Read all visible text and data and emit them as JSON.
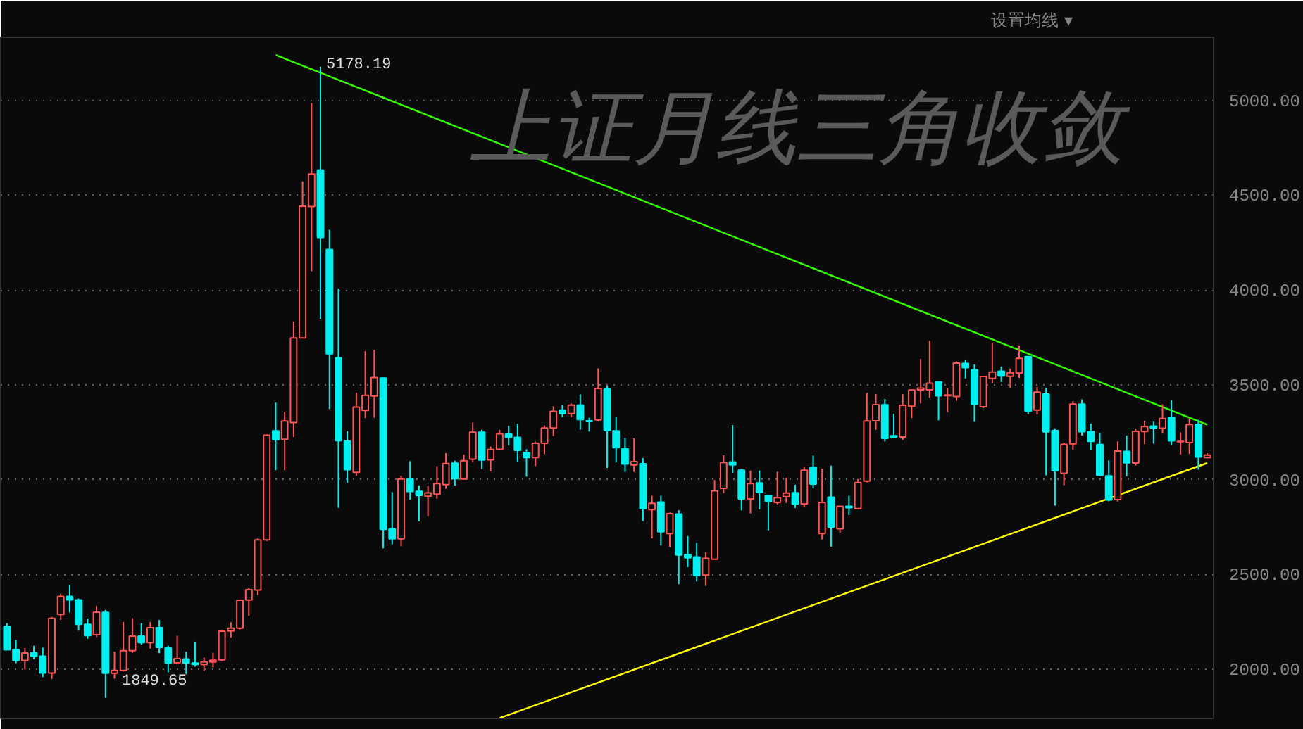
{
  "chart_data": {
    "type": "candlestick",
    "title": "上证月线三角收敛",
    "categories": [
      null,
      null,
      null,
      null,
      null,
      null,
      null,
      null,
      null,
      null,
      null,
      null,
      null,
      null,
      null,
      null,
      null,
      null,
      null,
      null,
      null,
      null,
      null,
      null,
      null,
      null,
      null,
      null,
      null,
      null,
      null,
      null,
      null,
      null,
      null,
      null,
      null,
      null,
      null,
      null,
      null,
      null,
      null,
      null,
      null,
      null,
      null,
      null,
      null,
      null,
      null,
      null,
      null,
      null,
      null,
      null,
      null,
      null,
      null,
      null,
      null,
      null,
      null,
      null,
      null,
      null,
      null,
      null,
      null,
      null,
      null,
      null,
      null,
      null,
      null,
      null,
      null,
      null,
      null,
      null,
      null,
      null,
      null,
      null,
      null,
      null,
      null,
      null,
      null,
      null,
      null,
      null,
      null,
      null,
      null,
      null,
      null,
      null,
      null,
      null,
      null,
      null,
      null,
      null,
      null,
      null,
      null,
      null,
      null,
      null,
      null,
      null,
      null,
      null,
      null,
      null,
      null,
      null,
      null,
      null,
      null,
      null,
      null,
      null,
      null,
      null,
      null,
      null,
      null,
      null,
      null,
      null,
      null,
      null,
      null
    ],
    "ohlc": [
      [
        2226,
        2243,
        2101,
        2103
      ],
      [
        2104,
        2155,
        2032,
        2047
      ],
      [
        2047,
        2112,
        1999,
        2086
      ],
      [
        2087,
        2124,
        2054,
        2069
      ],
      [
        2069,
        2114,
        1959,
        1980
      ],
      [
        1980,
        2276,
        1949,
        2269
      ],
      [
        2289,
        2399,
        2261,
        2385
      ],
      [
        2385,
        2445,
        2300,
        2366
      ],
      [
        2366,
        2373,
        2204,
        2237
      ],
      [
        2237,
        2268,
        2161,
        2178
      ],
      [
        2183,
        2334,
        2170,
        2301
      ],
      [
        2300,
        2314,
        1849.65,
        1979
      ],
      [
        1979,
        2093,
        1951,
        1994
      ],
      [
        1994,
        2250,
        1988,
        2098
      ],
      [
        2098,
        2270,
        2087,
        2175
      ],
      [
        2175,
        2243,
        2130,
        2141
      ],
      [
        2141,
        2250,
        2109,
        2220
      ],
      [
        2220,
        2260,
        2085,
        2116
      ],
      [
        2112,
        2125,
        1984,
        2033
      ],
      [
        2034,
        2177,
        2027,
        2056
      ],
      [
        2055,
        2093,
        1974,
        2033
      ],
      [
        2033,
        2146,
        2014,
        2026
      ],
      [
        2026,
        2062,
        1991,
        2039
      ],
      [
        2039,
        2087,
        2010,
        2048
      ],
      [
        2050,
        2207,
        2044,
        2201
      ],
      [
        2202,
        2248,
        2167,
        2217
      ],
      [
        2217,
        2364,
        2210,
        2364
      ],
      [
        2365,
        2430,
        2282,
        2420
      ],
      [
        2418,
        2690,
        2392,
        2683
      ],
      [
        2683,
        3239,
        2677,
        3235
      ],
      [
        3258,
        3406,
        3050,
        3210
      ],
      [
        3213,
        3357,
        3050,
        3310
      ],
      [
        3301,
        3835,
        3225,
        3748
      ],
      [
        3748,
        4573,
        3747,
        4442
      ],
      [
        4441,
        4986,
        4099,
        4612
      ],
      [
        4633,
        5178.19,
        3848,
        4277
      ],
      [
        4214,
        4318,
        3373,
        3664
      ],
      [
        3643,
        4007,
        2851,
        3206
      ],
      [
        3203,
        3256,
        2983,
        3053
      ],
      [
        3039,
        3459,
        3020,
        3383
      ],
      [
        3365,
        3678,
        3325,
        3445
      ],
      [
        3441,
        3684,
        3327,
        3539
      ],
      [
        3536,
        3539,
        2638,
        2738
      ],
      [
        2741,
        2934,
        2659,
        2688
      ],
      [
        2688,
        3021,
        2649,
        3004
      ],
      [
        3003,
        3098,
        2894,
        2938
      ],
      [
        2939,
        2970,
        2781,
        2917
      ],
      [
        2913,
        2967,
        2807,
        2930
      ],
      [
        2924,
        3071,
        2900,
        2979
      ],
      [
        2974,
        3140,
        2952,
        3085
      ],
      [
        3087,
        3100,
        2969,
        3005
      ],
      [
        3004,
        3133,
        3000,
        3100
      ],
      [
        3108,
        3301,
        3091,
        3250
      ],
      [
        3250,
        3264,
        3056,
        3104
      ],
      [
        3105,
        3175,
        3044,
        3159
      ],
      [
        3160,
        3263,
        3155,
        3242
      ],
      [
        3240,
        3284,
        3180,
        3223
      ],
      [
        3223,
        3295,
        3096,
        3155
      ],
      [
        3144,
        3161,
        3016,
        3117
      ],
      [
        3117,
        3201,
        3072,
        3192
      ],
      [
        3192,
        3286,
        3135,
        3273
      ],
      [
        3273,
        3387,
        3230,
        3361
      ],
      [
        3367,
        3392,
        3329,
        3349
      ],
      [
        3349,
        3402,
        3329,
        3393
      ],
      [
        3393,
        3450,
        3264,
        3317
      ],
      [
        3311,
        3326,
        3254,
        3307
      ],
      [
        3315,
        3587,
        3307,
        3481
      ],
      [
        3478,
        3495,
        3062,
        3259
      ],
      [
        3258,
        3333,
        3091,
        3169
      ],
      [
        3163,
        3220,
        3041,
        3082
      ],
      [
        3078,
        3219,
        3041,
        3095
      ],
      [
        3084,
        3114,
        2782,
        2847
      ],
      [
        2842,
        2915,
        2691,
        2876
      ],
      [
        2882,
        2915,
        2653,
        2725
      ],
      [
        2716,
        2827,
        2644,
        2821
      ],
      [
        2819,
        2839,
        2449,
        2603
      ],
      [
        2605,
        2703,
        2539,
        2588
      ],
      [
        2593,
        2667,
        2463,
        2494
      ],
      [
        2497,
        2618,
        2440,
        2585
      ],
      [
        2581,
        2998,
        2580,
        2941
      ],
      [
        2954,
        3129,
        2929,
        3091
      ],
      [
        3094,
        3288,
        3036,
        3078
      ],
      [
        3050,
        3056,
        2838,
        2899
      ],
      [
        2899,
        3048,
        2822,
        2979
      ],
      [
        2983,
        3048,
        2844,
        2932
      ],
      [
        2915,
        2917,
        2733,
        2886
      ],
      [
        2880,
        3042,
        2870,
        2905
      ],
      [
        2911,
        3010,
        2877,
        2929
      ],
      [
        2931,
        2973,
        2851,
        2871
      ],
      [
        2872,
        3066,
        2857,
        3050
      ],
      [
        3066,
        3127,
        2954,
        2977
      ],
      [
        2716,
        3058,
        2685,
        2880
      ],
      [
        2908,
        3074,
        2647,
        2750
      ],
      [
        2741,
        2860,
        2720,
        2860
      ],
      [
        2860,
        2915,
        2814,
        2852
      ],
      [
        2848,
        3003,
        2846,
        2985
      ],
      [
        2992,
        3458,
        2985,
        3310
      ],
      [
        3311,
        3452,
        3263,
        3396
      ],
      [
        3395,
        3425,
        3202,
        3218
      ],
      [
        3232,
        3347,
        3223,
        3225
      ],
      [
        3225,
        3451,
        3209,
        3392
      ],
      [
        3388,
        3474,
        3325,
        3473
      ],
      [
        3474,
        3637,
        3402,
        3483
      ],
      [
        3474,
        3732,
        3432,
        3509
      ],
      [
        3516,
        3518,
        3313,
        3442
      ],
      [
        3443,
        3481,
        3356,
        3447
      ],
      [
        3439,
        3624,
        3416,
        3615
      ],
      [
        3613,
        3630,
        3534,
        3591
      ],
      [
        3580,
        3608,
        3305,
        3397
      ],
      [
        3385,
        3545,
        3377,
        3544
      ],
      [
        3534,
        3723,
        3510,
        3568
      ],
      [
        3572,
        3597,
        3515,
        3547
      ],
      [
        3545,
        3586,
        3485,
        3564
      ],
      [
        3562,
        3708,
        3537,
        3640
      ],
      [
        3649,
        3651,
        3345,
        3362
      ],
      [
        3367,
        3490,
        3344,
        3462
      ],
      [
        3452,
        3482,
        3023,
        3252
      ],
      [
        3259,
        3271,
        2863,
        3047
      ],
      [
        3034,
        3195,
        2971,
        3186
      ],
      [
        3189,
        3414,
        3158,
        3399
      ],
      [
        3399,
        3424,
        3233,
        3253
      ],
      [
        3254,
        3296,
        3155,
        3202
      ],
      [
        3185,
        3247,
        3022,
        3024
      ],
      [
        3020,
        3102,
        2886,
        2893
      ],
      [
        2895,
        3202,
        2885,
        3151
      ],
      [
        3149,
        3233,
        3018,
        3089
      ],
      [
        3088,
        3269,
        3075,
        3255
      ],
      [
        3254,
        3310,
        3187,
        3280
      ],
      [
        3283,
        3306,
        3190,
        3273
      ],
      [
        3272,
        3397,
        3243,
        3323
      ],
      [
        3329,
        3418,
        3183,
        3205
      ],
      [
        3200,
        3250,
        3133,
        3202
      ],
      [
        3196,
        3322,
        3136,
        3291
      ],
      [
        3291,
        3316,
        3053,
        3120
      ],
      [
        3117,
        3139,
        3113,
        3130
      ]
    ],
    "series": [
      {
        "type": "line",
        "color": "#33ff00",
        "values": [
          null,
          null,
          null,
          null,
          null,
          null,
          null,
          null,
          null,
          null,
          null,
          null,
          null,
          null,
          null,
          null,
          null,
          null,
          null,
          null,
          null,
          null,
          null,
          null,
          null,
          null,
          null,
          null,
          null,
          null,
          5240,
          null,
          null,
          null,
          null,
          null,
          null,
          null,
          null,
          null,
          null,
          null,
          null,
          null,
          null,
          null,
          null,
          null,
          null,
          null,
          null,
          null,
          null,
          null,
          null,
          null,
          null,
          null,
          null,
          null,
          null,
          null,
          null,
          null,
          null,
          null,
          null,
          null,
          null,
          null,
          null,
          null,
          null,
          null,
          null,
          null,
          null,
          null,
          null,
          null,
          null,
          null,
          null,
          null,
          null,
          null,
          null,
          null,
          null,
          null,
          null,
          null,
          null,
          null,
          null,
          null,
          null,
          null,
          null,
          null,
          null,
          null,
          null,
          null,
          null,
          null,
          null,
          null,
          null,
          null,
          null,
          null,
          null,
          null,
          null,
          null,
          null,
          null,
          null,
          null,
          null,
          null,
          null,
          null,
          null,
          null,
          null,
          null,
          null,
          null,
          null,
          null,
          null,
          null,
          3290
        ]
      },
      {
        "type": "line",
        "color": "#ffff00",
        "values": [
          null,
          null,
          null,
          null,
          null,
          null,
          null,
          null,
          null,
          null,
          null,
          null,
          null,
          null,
          null,
          null,
          null,
          null,
          null,
          null,
          null,
          null,
          null,
          null,
          null,
          null,
          null,
          null,
          null,
          null,
          null,
          null,
          null,
          null,
          null,
          null,
          null,
          null,
          null,
          null,
          null,
          null,
          null,
          null,
          null,
          null,
          null,
          null,
          null,
          null,
          null,
          null,
          null,
          null,
          null,
          1743,
          null,
          null,
          null,
          null,
          null,
          null,
          null,
          null,
          null,
          null,
          null,
          null,
          null,
          null,
          null,
          null,
          null,
          null,
          null,
          null,
          null,
          null,
          null,
          null,
          null,
          null,
          null,
          null,
          null,
          null,
          null,
          null,
          null,
          null,
          null,
          null,
          null,
          null,
          null,
          null,
          null,
          null,
          null,
          null,
          null,
          null,
          null,
          null,
          null,
          null,
          null,
          null,
          null,
          null,
          null,
          null,
          null,
          null,
          null,
          null,
          null,
          null,
          null,
          null,
          null,
          null,
          null,
          null,
          null,
          null,
          null,
          null,
          null,
          null,
          null,
          null,
          null,
          null,
          3088
        ]
      }
    ],
    "ylim": [
      1741,
      5333
    ],
    "yticks": [
      {
        "value": 2000,
        "label": "2000.00"
      },
      {
        "value": 2500,
        "label": "2500.00"
      },
      {
        "value": 3000,
        "label": "3000.00"
      },
      {
        "value": 3500,
        "label": "3500.00"
      },
      {
        "value": 4000,
        "label": "4000.00"
      },
      {
        "value": 4500,
        "label": "4500.00"
      },
      {
        "value": 5000,
        "label": "5000.00"
      }
    ],
    "grid": "y",
    "tick_labels": "y",
    "annotations": [
      "5178.19",
      "1849.65",
      "设置均线 ▾"
    ]
  }
}
